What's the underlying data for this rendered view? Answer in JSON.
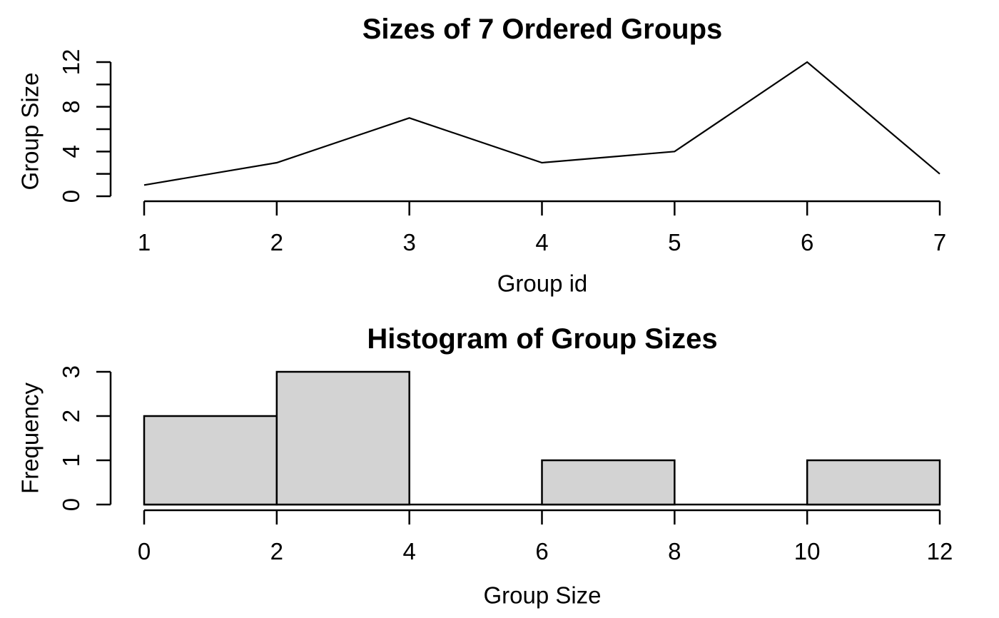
{
  "figure": {
    "background": "#ffffff",
    "foreground": "#000000"
  },
  "chart_data": [
    {
      "type": "line",
      "title": "Sizes of 7 Ordered Groups",
      "xlabel": "Group id",
      "ylabel": "Group Size",
      "x": [
        1,
        2,
        3,
        4,
        5,
        6,
        7
      ],
      "y": [
        1,
        3,
        7,
        3,
        4,
        12,
        2
      ],
      "xlim": [
        1,
        7
      ],
      "ylim": [
        0,
        12
      ],
      "xticks": [
        1,
        2,
        3,
        4,
        5,
        6,
        7
      ],
      "xtick_labels": [
        "1",
        "2",
        "3",
        "4",
        "5",
        "6",
        "7"
      ],
      "yticks": [
        0,
        2,
        4,
        6,
        8,
        10,
        12
      ],
      "ytick_labels": [
        "0",
        "",
        "4",
        "",
        "8",
        "",
        "12"
      ],
      "line_color": "#000000",
      "grid": false,
      "legend": false
    },
    {
      "type": "histogram",
      "title": "Histogram of Group Sizes",
      "xlabel": "Group Size",
      "ylabel": "Frequency",
      "bin_edges": [
        0,
        2,
        4,
        6,
        8,
        10,
        12
      ],
      "counts": [
        2,
        3,
        0,
        1,
        0,
        1
      ],
      "xlim": [
        0,
        12
      ],
      "ylim": [
        0,
        3
      ],
      "xticks": [
        0,
        2,
        4,
        6,
        8,
        10,
        12
      ],
      "xtick_labels": [
        "0",
        "2",
        "4",
        "6",
        "8",
        "10",
        "12"
      ],
      "yticks": [
        0,
        1,
        2,
        3
      ],
      "ytick_labels": [
        "0",
        "1",
        "2",
        "3"
      ],
      "bar_fill": "#d3d3d3",
      "bar_border": "#000000",
      "grid": false,
      "legend": false
    }
  ]
}
